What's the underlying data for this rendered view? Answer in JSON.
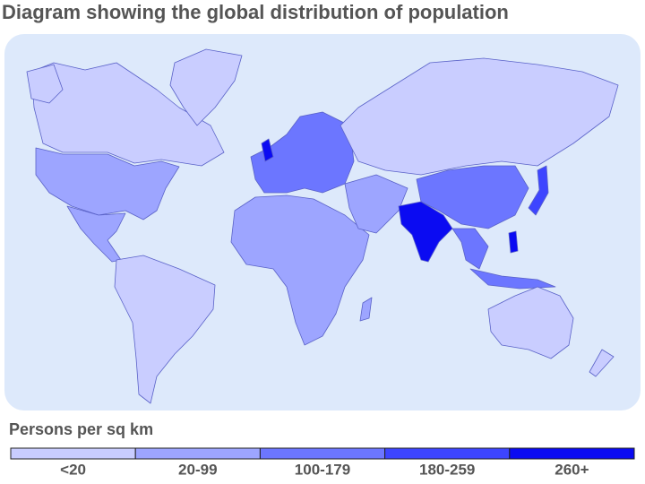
{
  "title": "Diagram showing the global distribution of population",
  "legend": {
    "title": "Persons per sq km",
    "classes": [
      {
        "label": "<20",
        "color": "#c9cdff"
      },
      {
        "label": "20-99",
        "color": "#9da5ff"
      },
      {
        "label": "100-179",
        "color": "#6c76ff"
      },
      {
        "label": "180-259",
        "color": "#3d45ff"
      },
      {
        "label": "260+",
        "color": "#0b0bf2"
      }
    ]
  }
}
